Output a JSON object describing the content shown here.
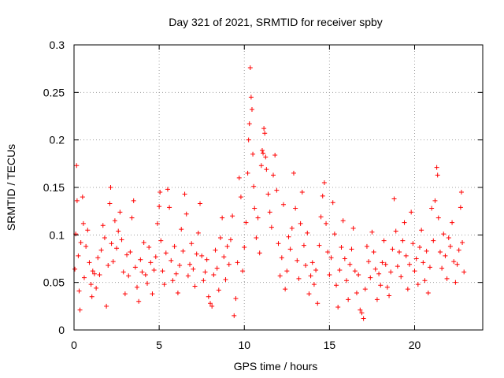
{
  "chart_data": {
    "type": "scatter",
    "title": "Day 321 of 2021, SRMTID for receiver spby",
    "xlabel": "GPS time / hours",
    "ylabel": "SRMTID / TECUs",
    "xlim": [
      0,
      24
    ],
    "ylim": [
      0,
      0.3
    ],
    "xticks": [
      0,
      5,
      10,
      15,
      20
    ],
    "xtick_labels": [
      "0",
      "5",
      "10",
      "15",
      "20"
    ],
    "yticks": [
      0,
      0.05,
      0.1,
      0.15,
      0.2,
      0.25,
      0.3
    ],
    "ytick_labels": [
      "0",
      "0.05",
      "0.1",
      "0.15",
      "0.2",
      "0.25",
      "0.3"
    ],
    "grid": true,
    "marker": "+",
    "color": "#ff0000",
    "series": [
      {
        "name": "SRMTID",
        "points": [
          [
            0.05,
            0.064
          ],
          [
            0.1,
            0.101
          ],
          [
            0.15,
            0.173
          ],
          [
            0.18,
            0.136
          ],
          [
            0.25,
            0.078
          ],
          [
            0.3,
            0.041
          ],
          [
            0.35,
            0.021
          ],
          [
            0.4,
            0.092
          ],
          [
            0.5,
            0.14
          ],
          [
            0.55,
            0.112
          ],
          [
            0.6,
            0.055
          ],
          [
            0.7,
            0.088
          ],
          [
            0.8,
            0.105
          ],
          [
            0.9,
            0.071
          ],
          [
            1.0,
            0.048
          ],
          [
            1.05,
            0.035
          ],
          [
            1.1,
            0.062
          ],
          [
            1.2,
            0.059
          ],
          [
            1.3,
            0.044
          ],
          [
            1.4,
            0.076
          ],
          [
            1.5,
            0.058
          ],
          [
            1.6,
            0.084
          ],
          [
            1.7,
            0.11
          ],
          [
            1.8,
            0.097
          ],
          [
            1.9,
            0.025
          ],
          [
            2.0,
            0.068
          ],
          [
            2.1,
            0.133
          ],
          [
            2.15,
            0.15
          ],
          [
            2.2,
            0.091
          ],
          [
            2.3,
            0.072
          ],
          [
            2.4,
            0.115
          ],
          [
            2.5,
            0.086
          ],
          [
            2.6,
            0.104
          ],
          [
            2.7,
            0.124
          ],
          [
            2.8,
            0.095
          ],
          [
            2.9,
            0.061
          ],
          [
            3.0,
            0.038
          ],
          [
            3.1,
            0.079
          ],
          [
            3.2,
            0.057
          ],
          [
            3.3,
            0.082
          ],
          [
            3.4,
            0.118
          ],
          [
            3.5,
            0.136
          ],
          [
            3.6,
            0.066
          ],
          [
            3.7,
            0.045
          ],
          [
            3.8,
            0.03
          ],
          [
            3.9,
            0.074
          ],
          [
            4.0,
            0.061
          ],
          [
            4.1,
            0.092
          ],
          [
            4.2,
            0.058
          ],
          [
            4.3,
            0.049
          ],
          [
            4.4,
            0.087
          ],
          [
            4.5,
            0.071
          ],
          [
            4.6,
            0.038
          ],
          [
            4.7,
            0.063
          ],
          [
            4.8,
            0.077
          ],
          [
            4.9,
            0.112
          ],
          [
            5.0,
            0.13
          ],
          [
            5.05,
            0.145
          ],
          [
            5.1,
            0.094
          ],
          [
            5.2,
            0.062
          ],
          [
            5.3,
            0.048
          ],
          [
            5.4,
            0.081
          ],
          [
            5.5,
            0.148
          ],
          [
            5.6,
            0.129
          ],
          [
            5.7,
            0.073
          ],
          [
            5.8,
            0.052
          ],
          [
            5.9,
            0.088
          ],
          [
            6.0,
            0.059
          ],
          [
            6.1,
            0.039
          ],
          [
            6.2,
            0.068
          ],
          [
            6.3,
            0.106
          ],
          [
            6.4,
            0.083
          ],
          [
            6.5,
            0.143
          ],
          [
            6.6,
            0.122
          ],
          [
            6.7,
            0.057
          ],
          [
            6.8,
            0.069
          ],
          [
            6.9,
            0.091
          ],
          [
            7.0,
            0.064
          ],
          [
            7.1,
            0.046
          ],
          [
            7.2,
            0.08
          ],
          [
            7.3,
            0.102
          ],
          [
            7.4,
            0.133
          ],
          [
            7.5,
            0.078
          ],
          [
            7.6,
            0.052
          ],
          [
            7.7,
            0.061
          ],
          [
            7.8,
            0.074
          ],
          [
            7.9,
            0.035
          ],
          [
            8.0,
            0.028
          ],
          [
            8.1,
            0.025
          ],
          [
            8.2,
            0.058
          ],
          [
            8.3,
            0.084
          ],
          [
            8.4,
            0.065
          ],
          [
            8.5,
            0.042
          ],
          [
            8.6,
            0.097
          ],
          [
            8.7,
            0.118
          ],
          [
            8.8,
            0.077
          ],
          [
            8.9,
            0.053
          ],
          [
            9.0,
            0.088
          ],
          [
            9.1,
            0.069
          ],
          [
            9.2,
            0.095
          ],
          [
            9.3,
            0.12
          ],
          [
            9.4,
            0.015
          ],
          [
            9.5,
            0.033
          ],
          [
            9.6,
            0.071
          ],
          [
            9.7,
            0.16
          ],
          [
            9.8,
            0.14
          ],
          [
            9.9,
            0.062
          ],
          [
            10.0,
            0.087
          ],
          [
            10.1,
            0.113
          ],
          [
            10.2,
            0.165
          ],
          [
            10.25,
            0.2
          ],
          [
            10.3,
            0.217
          ],
          [
            10.35,
            0.276
          ],
          [
            10.4,
            0.245
          ],
          [
            10.45,
            0.232
          ],
          [
            10.5,
            0.185
          ],
          [
            10.55,
            0.151
          ],
          [
            10.6,
            0.128
          ],
          [
            10.7,
            0.097
          ],
          [
            10.8,
            0.118
          ],
          [
            10.9,
            0.081
          ],
          [
            11.0,
            0.173
          ],
          [
            11.05,
            0.189
          ],
          [
            11.1,
            0.186
          ],
          [
            11.15,
            0.212
          ],
          [
            11.2,
            0.207
          ],
          [
            11.25,
            0.182
          ],
          [
            11.3,
            0.169
          ],
          [
            11.4,
            0.143
          ],
          [
            11.5,
            0.124
          ],
          [
            11.6,
            0.108
          ],
          [
            11.7,
            0.163
          ],
          [
            11.8,
            0.184
          ],
          [
            11.9,
            0.147
          ],
          [
            12.0,
            0.091
          ],
          [
            12.1,
            0.057
          ],
          [
            12.2,
            0.076
          ],
          [
            12.3,
            0.132
          ],
          [
            12.4,
            0.043
          ],
          [
            12.5,
            0.062
          ],
          [
            12.6,
            0.098
          ],
          [
            12.7,
            0.085
          ],
          [
            12.8,
            0.107
          ],
          [
            12.9,
            0.165
          ],
          [
            13.0,
            0.128
          ],
          [
            13.1,
            0.073
          ],
          [
            13.2,
            0.054
          ],
          [
            13.3,
            0.112
          ],
          [
            13.4,
            0.145
          ],
          [
            13.5,
            0.089
          ],
          [
            13.6,
            0.068
          ],
          [
            13.7,
            0.102
          ],
          [
            13.8,
            0.038
          ],
          [
            13.9,
            0.057
          ],
          [
            14.0,
            0.071
          ],
          [
            14.1,
            0.048
          ],
          [
            14.2,
            0.063
          ],
          [
            14.3,
            0.028
          ],
          [
            14.4,
            0.089
          ],
          [
            14.5,
            0.119
          ],
          [
            14.6,
            0.141
          ],
          [
            14.7,
            0.155
          ],
          [
            14.8,
            0.112
          ],
          [
            14.9,
            0.082
          ],
          [
            15.0,
            0.058
          ],
          [
            15.1,
            0.076
          ],
          [
            15.2,
            0.134
          ],
          [
            15.3,
            0.101
          ],
          [
            15.4,
            0.047
          ],
          [
            15.5,
            0.024
          ],
          [
            15.6,
            0.063
          ],
          [
            15.7,
            0.087
          ],
          [
            15.8,
            0.115
          ],
          [
            15.9,
            0.075
          ],
          [
            16.0,
            0.052
          ],
          [
            16.1,
            0.032
          ],
          [
            16.2,
            0.069
          ],
          [
            16.3,
            0.085
          ],
          [
            16.4,
            0.107
          ],
          [
            16.5,
            0.062
          ],
          [
            16.6,
            0.039
          ],
          [
            16.7,
            0.058
          ],
          [
            16.8,
            0.021
          ],
          [
            16.9,
            0.018
          ],
          [
            17.0,
            0.012
          ],
          [
            17.1,
            0.043
          ],
          [
            17.2,
            0.088
          ],
          [
            17.3,
            0.072
          ],
          [
            17.4,
            0.055
          ],
          [
            17.5,
            0.103
          ],
          [
            17.6,
            0.082
          ],
          [
            17.7,
            0.064
          ],
          [
            17.8,
            0.032
          ],
          [
            17.9,
            0.059
          ],
          [
            18.0,
            0.047
          ],
          [
            18.1,
            0.071
          ],
          [
            18.2,
            0.094
          ],
          [
            18.3,
            0.069
          ],
          [
            18.4,
            0.045
          ],
          [
            18.5,
            0.036
          ],
          [
            18.6,
            0.061
          ],
          [
            18.7,
            0.085
          ],
          [
            18.8,
            0.138
          ],
          [
            18.9,
            0.104
          ],
          [
            19.0,
            0.067
          ],
          [
            19.1,
            0.082
          ],
          [
            19.2,
            0.056
          ],
          [
            19.3,
            0.094
          ],
          [
            19.4,
            0.113
          ],
          [
            19.5,
            0.078
          ],
          [
            19.6,
            0.043
          ],
          [
            19.7,
            0.069
          ],
          [
            19.8,
            0.124
          ],
          [
            19.9,
            0.091
          ],
          [
            20.0,
            0.062
          ],
          [
            20.1,
            0.075
          ],
          [
            20.2,
            0.048
          ],
          [
            20.3,
            0.087
          ],
          [
            20.4,
            0.105
          ],
          [
            20.5,
            0.071
          ],
          [
            20.6,
            0.052
          ],
          [
            20.7,
            0.083
          ],
          [
            20.8,
            0.039
          ],
          [
            20.9,
            0.066
          ],
          [
            21.0,
            0.128
          ],
          [
            21.1,
            0.094
          ],
          [
            21.2,
            0.136
          ],
          [
            21.3,
            0.171
          ],
          [
            21.35,
            0.163
          ],
          [
            21.4,
            0.118
          ],
          [
            21.5,
            0.082
          ],
          [
            21.6,
            0.065
          ],
          [
            21.7,
            0.101
          ],
          [
            21.8,
            0.078
          ],
          [
            21.9,
            0.054
          ],
          [
            22.0,
            0.097
          ],
          [
            22.1,
            0.088
          ],
          [
            22.2,
            0.113
          ],
          [
            22.3,
            0.072
          ],
          [
            22.4,
            0.05
          ],
          [
            22.5,
            0.069
          ],
          [
            22.6,
            0.084
          ],
          [
            22.7,
            0.129
          ],
          [
            22.75,
            0.145
          ],
          [
            22.8,
            0.092
          ],
          [
            22.9,
            0.061
          ]
        ]
      }
    ]
  }
}
